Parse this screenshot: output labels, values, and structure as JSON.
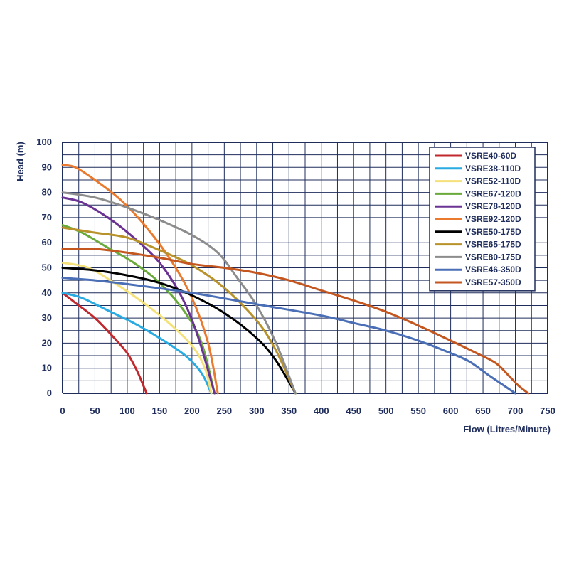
{
  "chart_data": {
    "type": "line",
    "xlabel": "Flow (Litres/Minute)",
    "ylabel": "Head (m)",
    "xlim": [
      0,
      750
    ],
    "ylim": [
      0,
      100
    ],
    "x_ticks": [
      "0",
      "50",
      "100",
      "150",
      "200",
      "250",
      "300",
      "350",
      "400",
      "450",
      "500",
      "550",
      "600",
      "650",
      "700",
      "750"
    ],
    "y_ticks": [
      "0",
      "10",
      "20",
      "30",
      "40",
      "50",
      "60",
      "70",
      "80",
      "90",
      "100"
    ],
    "grid": true,
    "legend_position": "top-right",
    "series": [
      {
        "name": "VSRE40-60D",
        "color": "#c0282d",
        "points": [
          [
            0,
            40
          ],
          [
            20,
            36
          ],
          [
            50,
            30
          ],
          [
            80,
            22
          ],
          [
            100,
            16
          ],
          [
            115,
            9
          ],
          [
            125,
            3
          ],
          [
            130,
            0
          ]
        ]
      },
      {
        "name": "VSRE38-110D",
        "color": "#29abe2",
        "points": [
          [
            0,
            40
          ],
          [
            30,
            38
          ],
          [
            70,
            33
          ],
          [
            110,
            28
          ],
          [
            150,
            22
          ],
          [
            190,
            15
          ],
          [
            215,
            8
          ],
          [
            230,
            0
          ]
        ]
      },
      {
        "name": "VSRE52-110D",
        "color": "#f5e17a",
        "points": [
          [
            0,
            52
          ],
          [
            40,
            50
          ],
          [
            80,
            44
          ],
          [
            120,
            37
          ],
          [
            160,
            29
          ],
          [
            200,
            19
          ],
          [
            220,
            10
          ],
          [
            230,
            0
          ]
        ]
      },
      {
        "name": "VSRE67-120D",
        "color": "#6aaa3b",
        "points": [
          [
            0,
            67
          ],
          [
            30,
            64
          ],
          [
            70,
            58
          ],
          [
            110,
            52
          ],
          [
            150,
            44
          ],
          [
            190,
            32
          ],
          [
            215,
            20
          ],
          [
            235,
            0
          ]
        ]
      },
      {
        "name": "VSRE78-120D",
        "color": "#6a3293",
        "points": [
          [
            0,
            78
          ],
          [
            30,
            76
          ],
          [
            70,
            70
          ],
          [
            110,
            62
          ],
          [
            150,
            52
          ],
          [
            185,
            38
          ],
          [
            210,
            22
          ],
          [
            235,
            0
          ]
        ]
      },
      {
        "name": "VSRE92-120D",
        "color": "#ea7a2e",
        "points": [
          [
            0,
            91
          ],
          [
            20,
            90
          ],
          [
            50,
            85
          ],
          [
            90,
            77
          ],
          [
            130,
            66
          ],
          [
            170,
            52
          ],
          [
            200,
            38
          ],
          [
            225,
            20
          ],
          [
            240,
            0
          ]
        ]
      },
      {
        "name": "VSRE50-175D",
        "color": "#000000",
        "points": [
          [
            0,
            50
          ],
          [
            50,
            49
          ],
          [
            100,
            47
          ],
          [
            150,
            44
          ],
          [
            200,
            39
          ],
          [
            250,
            32
          ],
          [
            300,
            22
          ],
          [
            330,
            13
          ],
          [
            360,
            0
          ]
        ]
      },
      {
        "name": "VSRE65-175D",
        "color": "#b8922b",
        "points": [
          [
            0,
            66
          ],
          [
            50,
            64
          ],
          [
            100,
            62
          ],
          [
            150,
            57
          ],
          [
            200,
            51
          ],
          [
            250,
            42
          ],
          [
            300,
            29
          ],
          [
            330,
            17
          ],
          [
            360,
            0
          ]
        ]
      },
      {
        "name": "VSRE80-175D",
        "color": "#8c8c8c",
        "points": [
          [
            0,
            80
          ],
          [
            50,
            78
          ],
          [
            100,
            74
          ],
          [
            150,
            69
          ],
          [
            200,
            63
          ],
          [
            240,
            56
          ],
          [
            270,
            46
          ],
          [
            300,
            35
          ],
          [
            330,
            20
          ],
          [
            360,
            0
          ]
        ]
      },
      {
        "name": "VSRE46-350D",
        "color": "#4a6fb6",
        "points": [
          [
            0,
            46
          ],
          [
            50,
            45
          ],
          [
            100,
            43.5
          ],
          [
            200,
            40
          ],
          [
            300,
            35.5
          ],
          [
            400,
            31
          ],
          [
            450,
            28
          ],
          [
            500,
            25
          ],
          [
            550,
            21
          ],
          [
            600,
            16
          ],
          [
            630,
            12.5
          ],
          [
            660,
            7
          ],
          [
            700,
            0
          ]
        ]
      },
      {
        "name": "VSRE57-350D",
        "color": "#c4561f",
        "points": [
          [
            0,
            57.5
          ],
          [
            50,
            57.5
          ],
          [
            100,
            56
          ],
          [
            150,
            54
          ],
          [
            200,
            51.5
          ],
          [
            250,
            50
          ],
          [
            300,
            48
          ],
          [
            350,
            45
          ],
          [
            400,
            41
          ],
          [
            450,
            37
          ],
          [
            500,
            32.5
          ],
          [
            550,
            27
          ],
          [
            600,
            21
          ],
          [
            640,
            16
          ],
          [
            670,
            12
          ],
          [
            690,
            7
          ],
          [
            705,
            3
          ],
          [
            720,
            0
          ]
        ]
      }
    ]
  }
}
